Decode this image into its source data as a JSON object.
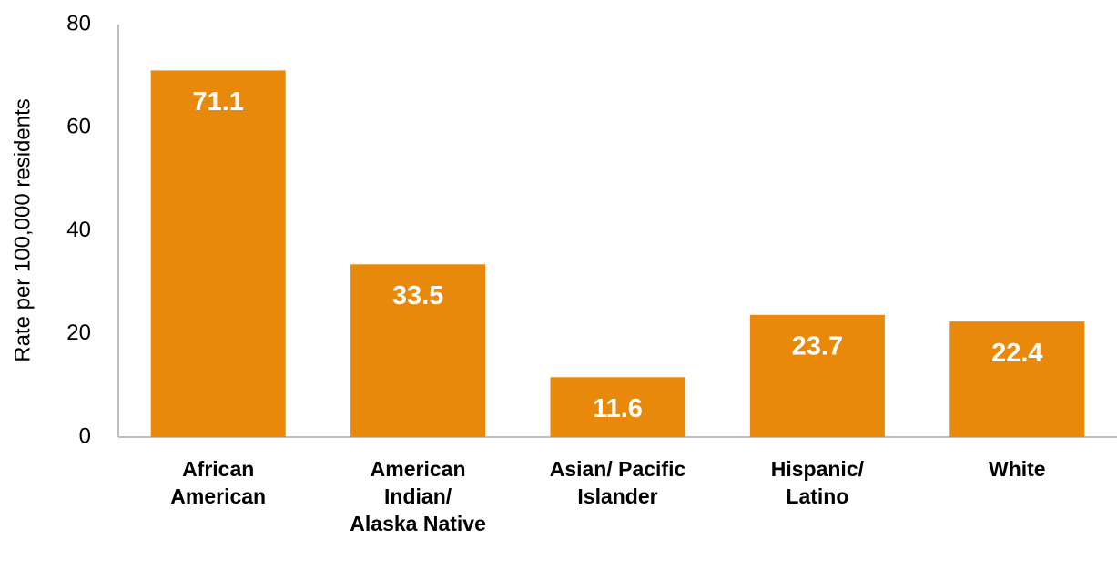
{
  "chart_data": {
    "type": "bar",
    "y_label": "Rate per 100,000 residents",
    "categories": [
      "African American",
      "American Indian/ Alaska Native",
      "Asian/ Pacific Islander",
      "Hispanic/ Latino",
      "White"
    ],
    "values": [
      71.1,
      33.5,
      11.6,
      23.7,
      22.4
    ],
    "color": "#e8890c",
    "ylim": [
      0,
      80
    ],
    "yticks": [
      0,
      20,
      40,
      60,
      80
    ],
    "grid": false
  }
}
